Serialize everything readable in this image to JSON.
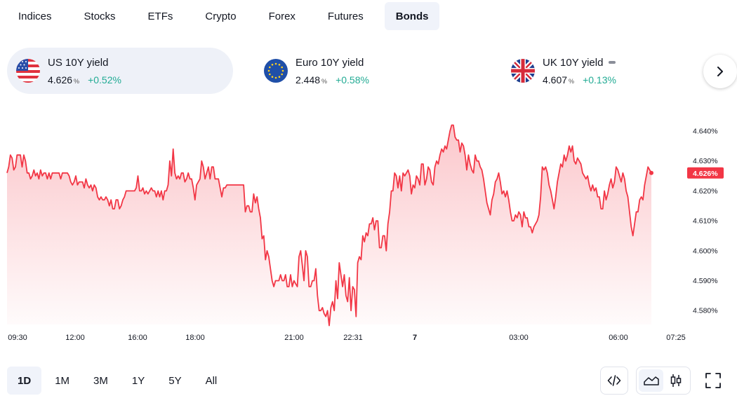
{
  "tabs": [
    {
      "label": "Indices",
      "active": false
    },
    {
      "label": "Stocks",
      "active": false
    },
    {
      "label": "ETFs",
      "active": false
    },
    {
      "label": "Crypto",
      "active": false
    },
    {
      "label": "Forex",
      "active": false
    },
    {
      "label": "Futures",
      "active": false
    },
    {
      "label": "Bonds",
      "active": true
    }
  ],
  "tickers": [
    {
      "name": "US 10Y yield",
      "value": "4.626",
      "unit": "%",
      "change": "+0.52%",
      "flag": "us-flag",
      "active": true
    },
    {
      "name": "Euro 10Y yield",
      "value": "2.448",
      "unit": "%",
      "change": "+0.58%",
      "flag": "eu-flag",
      "active": false
    },
    {
      "name": "UK 10Y yield",
      "value": "4.607",
      "unit": "%",
      "change": "+0.13%",
      "flag": "uk-flag",
      "active": false
    }
  ],
  "colors": {
    "line": "#f23645",
    "positive": "#22ab94",
    "active_bg": "#f0f3fa"
  },
  "chart_data": {
    "type": "area",
    "series": [
      {
        "values": [
          4.626,
          4.628,
          4.632,
          4.631,
          4.627,
          4.628,
          4.632,
          4.632,
          4.632,
          4.628,
          4.632,
          4.63,
          4.626,
          4.626,
          4.624,
          4.625,
          4.627,
          4.625,
          4.626,
          4.624,
          4.627,
          4.625,
          4.626,
          4.626,
          4.624,
          4.626,
          4.624,
          4.626,
          4.626,
          4.626,
          4.626,
          4.626,
          4.624,
          4.626,
          4.626,
          4.626,
          4.626,
          4.625,
          4.623,
          4.622,
          4.623,
          4.625,
          4.622,
          4.623,
          4.623,
          4.623,
          4.621,
          4.624,
          4.622,
          4.621,
          4.622,
          4.62,
          4.622,
          4.621,
          4.618,
          4.617,
          4.618,
          4.617,
          4.617,
          4.618,
          4.617,
          4.615,
          4.617,
          4.614,
          4.614,
          4.617,
          4.617,
          4.614,
          4.615,
          4.617,
          4.618,
          4.62,
          4.62,
          4.62,
          4.62,
          4.62,
          4.62,
          4.621,
          4.625,
          4.62,
          4.62,
          4.621,
          4.619,
          4.62,
          4.619,
          4.62,
          4.621,
          4.62,
          4.62,
          4.618,
          4.62,
          4.618,
          4.62,
          4.617,
          4.62,
          4.62,
          4.622,
          4.63,
          4.625,
          4.634,
          4.626,
          4.624,
          4.625,
          4.624,
          4.626,
          4.626,
          4.623,
          4.624,
          4.626,
          4.624,
          4.624,
          4.621,
          4.617,
          4.622,
          4.623,
          4.624,
          4.63,
          4.628,
          4.624,
          4.626,
          4.628,
          4.624,
          4.628,
          4.628,
          4.624,
          4.624,
          4.624,
          4.621,
          4.618,
          4.621,
          4.621,
          4.622,
          4.622,
          4.622,
          4.622,
          4.622,
          4.622,
          4.622,
          4.622,
          4.622,
          4.622,
          4.622,
          4.613,
          4.615,
          4.615,
          4.613,
          4.613,
          4.619,
          4.616,
          4.618,
          4.614,
          4.611,
          4.604,
          4.605,
          4.597,
          4.6,
          4.598,
          4.594,
          4.59,
          4.588,
          4.59,
          4.59,
          4.59,
          4.592,
          4.59,
          4.59,
          4.592,
          4.588,
          4.588,
          4.592,
          4.588,
          4.59,
          4.589,
          4.588,
          4.598,
          4.6,
          4.595,
          4.59,
          4.6,
          4.598,
          4.588,
          4.588,
          4.59,
          4.59,
          4.594,
          4.585,
          4.58,
          4.58,
          4.581,
          4.579,
          4.578,
          4.58,
          4.575,
          4.581,
          4.583,
          4.58,
          4.59,
          4.584,
          4.596,
          4.592,
          4.588,
          4.592,
          4.585,
          4.583,
          4.591,
          4.58,
          4.588,
          4.587,
          4.578,
          4.596,
          4.598,
          4.597,
          4.605,
          4.603,
          4.606,
          4.605,
          4.609,
          4.609,
          4.611,
          4.607,
          4.61,
          4.61,
          4.601,
          4.601,
          4.605,
          4.605,
          4.6,
          4.609,
          4.613,
          4.62,
          4.62,
          4.626,
          4.625,
          4.621,
          4.625,
          4.62,
          4.626,
          4.625,
          4.626,
          4.627,
          4.625,
          4.619,
          4.622,
          4.621,
          4.625,
          4.624,
          4.622,
          4.629,
          4.629,
          4.622,
          4.624,
          4.628,
          4.627,
          4.623,
          4.622,
          4.628,
          4.63,
          4.629,
          4.632,
          4.634,
          4.633,
          4.635,
          4.634,
          4.637,
          4.64,
          4.642,
          4.642,
          4.638,
          4.637,
          4.637,
          4.633,
          4.636,
          4.635,
          4.632,
          4.627,
          4.632,
          4.629,
          4.627,
          4.626,
          4.632,
          4.63,
          4.63,
          4.628,
          4.627,
          4.624,
          4.62,
          4.616,
          4.614,
          4.612,
          4.617,
          4.619,
          4.623,
          4.624,
          4.626,
          4.623,
          4.619,
          4.62,
          4.618,
          4.62,
          4.617,
          4.613,
          4.61,
          4.61,
          4.612,
          4.611,
          4.613,
          4.612,
          4.608,
          4.613,
          4.611,
          4.611,
          4.608,
          4.608,
          4.606,
          4.608,
          4.609,
          4.61,
          4.612,
          4.618,
          4.628,
          4.627,
          4.628,
          4.626,
          4.622,
          4.62,
          4.617,
          4.614,
          4.618,
          4.623,
          4.626,
          4.629,
          4.628,
          4.632,
          4.63,
          4.632,
          4.635,
          4.633,
          4.635,
          4.63,
          4.629,
          4.631,
          4.63,
          4.629,
          4.626,
          4.625,
          4.624,
          4.625,
          4.622,
          4.62,
          4.622,
          4.62,
          4.621,
          4.618,
          4.618,
          4.614,
          4.614,
          4.62,
          4.617,
          4.619,
          4.622,
          4.624,
          4.621,
          4.623,
          4.628,
          4.627,
          4.625,
          4.623,
          4.626,
          4.624,
          4.62,
          4.618,
          4.613,
          4.608,
          4.605,
          4.609,
          4.613,
          4.613,
          4.617,
          4.618,
          4.617,
          4.622,
          4.625,
          4.628,
          4.627,
          4.626
        ]
      }
    ],
    "x_tick_labels": [
      "09:30",
      "12:00",
      "16:00",
      "18:00",
      "21:00",
      "22:31",
      "7",
      "03:00",
      "06:00",
      "07:25"
    ],
    "x_tick_bold": [
      false,
      false,
      false,
      false,
      false,
      false,
      true,
      false,
      false,
      false
    ],
    "y_tick_labels": [
      "4.640%",
      "4.630%",
      "4.620%",
      "4.610%",
      "4.600%",
      "4.590%",
      "4.580%"
    ],
    "y_ticks": [
      4.64,
      4.63,
      4.62,
      4.61,
      4.6,
      4.59,
      4.58
    ],
    "ylim": [
      4.575,
      4.644
    ],
    "last_value_label": "4.626%",
    "grid": false,
    "legend": "none"
  },
  "periods": [
    {
      "label": "1D",
      "active": true
    },
    {
      "label": "1M",
      "active": false
    },
    {
      "label": "3M",
      "active": false
    },
    {
      "label": "1Y",
      "active": false
    },
    {
      "label": "5Y",
      "active": false
    },
    {
      "label": "All",
      "active": false
    }
  ],
  "tools": {
    "embed_icon": "code-icon",
    "area_icon": "area-chart-icon",
    "candles_icon": "candlestick-icon",
    "fullscreen_icon": "fullscreen-icon",
    "next_icon": "chevron-right-icon"
  }
}
